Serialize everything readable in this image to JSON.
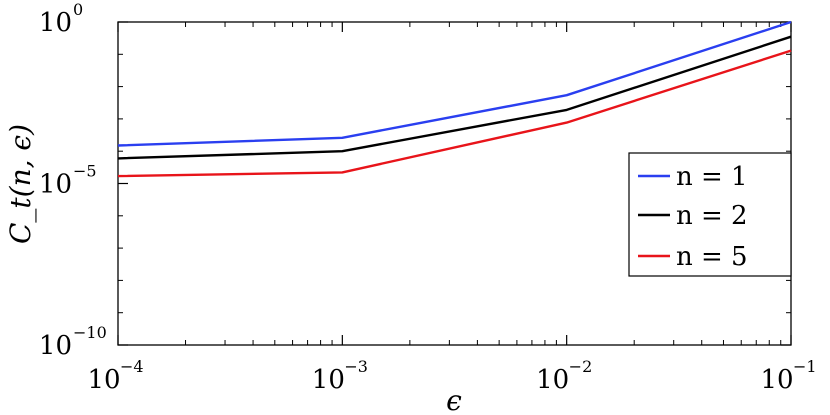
{
  "chart_data": {
    "type": "line",
    "title": "",
    "xlabel": "ϵ",
    "ylabel": "C_t(n, ϵ)",
    "xscale": "log",
    "yscale": "log",
    "xlim": [
      0.0001,
      0.1
    ],
    "ylim": [
      1e-10,
      1
    ],
    "grid": false,
    "legend_position": "right",
    "x": [
      0.0001,
      0.001,
      0.01,
      0.1
    ],
    "x_ticks": [
      {
        "base": "10",
        "exp": "−4"
      },
      {
        "base": "10",
        "exp": "−3"
      },
      {
        "base": "10",
        "exp": "−2"
      },
      {
        "base": "10",
        "exp": "−1"
      }
    ],
    "y_ticks": [
      {
        "base": "10",
        "exp": "0"
      },
      {
        "base": "10",
        "exp": "−5"
      },
      {
        "base": "10",
        "exp": "−10"
      }
    ],
    "series": [
      {
        "name": "n = 1",
        "color": "#2a3ff0",
        "values": [
          0.00015,
          0.00026,
          0.0054,
          1.0
        ]
      },
      {
        "name": "n = 2",
        "color": "#000000",
        "values": [
          6e-05,
          0.0001,
          0.0019,
          0.35
        ]
      },
      {
        "name": "n = 5",
        "color": "#e8141a",
        "values": [
          1.7e-05,
          2.2e-05,
          0.00077,
          0.13
        ]
      }
    ]
  }
}
